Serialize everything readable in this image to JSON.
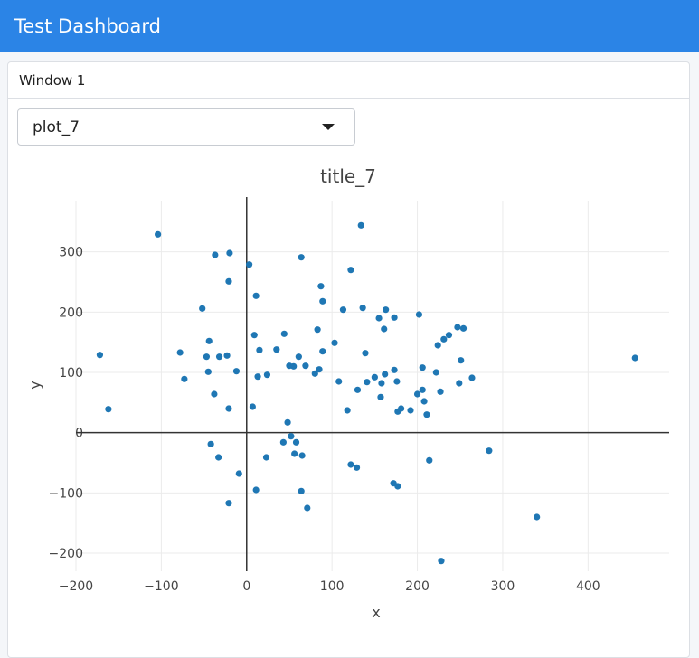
{
  "header": {
    "title": "Test Dashboard"
  },
  "window": {
    "title": "Window 1"
  },
  "select": {
    "value": "plot_7"
  },
  "colors": {
    "header_bg": "#2b84e6",
    "marker": "#1f77b4"
  },
  "chart_data": {
    "type": "scatter",
    "title": "title_7",
    "xlabel": "x",
    "ylabel": "y",
    "xlim": [
      -200,
      495
    ],
    "ylim": [
      -230,
      385
    ],
    "xticks": [
      -200,
      -100,
      0,
      100,
      200,
      300,
      400
    ],
    "yticks": [
      -200,
      -100,
      0,
      100,
      200,
      300
    ],
    "grid": true,
    "points": [
      [
        -172,
        129
      ],
      [
        -162,
        39
      ],
      [
        -104,
        329
      ],
      [
        -78,
        133
      ],
      [
        -73,
        89
      ],
      [
        -52,
        206
      ],
      [
        -47,
        126
      ],
      [
        -45,
        101
      ],
      [
        -44,
        152
      ],
      [
        -42,
        -19
      ],
      [
        -38,
        64
      ],
      [
        -37,
        295
      ],
      [
        -33,
        -41
      ],
      [
        -32,
        126
      ],
      [
        -23,
        128
      ],
      [
        -21,
        -117
      ],
      [
        -21,
        251
      ],
      [
        -21,
        40
      ],
      [
        -20,
        298
      ],
      [
        -12,
        102
      ],
      [
        -9,
        -68
      ],
      [
        3,
        279
      ],
      [
        7,
        43
      ],
      [
        9,
        162
      ],
      [
        11,
        227
      ],
      [
        11,
        -95
      ],
      [
        13,
        93
      ],
      [
        15,
        137
      ],
      [
        23,
        -41
      ],
      [
        24,
        96
      ],
      [
        35,
        138
      ],
      [
        43,
        -16
      ],
      [
        44,
        164
      ],
      [
        48,
        17
      ],
      [
        50,
        111
      ],
      [
        52,
        -6
      ],
      [
        55,
        110
      ],
      [
        56,
        -35
      ],
      [
        58,
        -16
      ],
      [
        61,
        126
      ],
      [
        64,
        291
      ],
      [
        64,
        -97
      ],
      [
        65,
        -38
      ],
      [
        69,
        111
      ],
      [
        71,
        -125
      ],
      [
        80,
        98
      ],
      [
        83,
        171
      ],
      [
        85,
        105
      ],
      [
        87,
        243
      ],
      [
        89,
        218
      ],
      [
        89,
        135
      ],
      [
        103,
        149
      ],
      [
        108,
        85
      ],
      [
        113,
        204
      ],
      [
        118,
        37
      ],
      [
        122,
        270
      ],
      [
        122,
        -53
      ],
      [
        129,
        -58
      ],
      [
        130,
        71
      ],
      [
        134,
        344
      ],
      [
        136,
        207
      ],
      [
        139,
        132
      ],
      [
        141,
        84
      ],
      [
        150,
        92
      ],
      [
        155,
        190
      ],
      [
        157,
        59
      ],
      [
        158,
        82
      ],
      [
        161,
        172
      ],
      [
        162,
        97
      ],
      [
        163,
        204
      ],
      [
        172,
        -84
      ],
      [
        173,
        191
      ],
      [
        173,
        104
      ],
      [
        176,
        85
      ],
      [
        177,
        -89
      ],
      [
        177,
        35
      ],
      [
        181,
        40
      ],
      [
        192,
        37
      ],
      [
        200,
        64
      ],
      [
        202,
        196
      ],
      [
        206,
        71
      ],
      [
        206,
        108
      ],
      [
        208,
        52
      ],
      [
        211,
        30
      ],
      [
        214,
        -46
      ],
      [
        222,
        100
      ],
      [
        224,
        145
      ],
      [
        227,
        68
      ],
      [
        228,
        -213
      ],
      [
        231,
        155
      ],
      [
        237,
        162
      ],
      [
        247,
        175
      ],
      [
        249,
        82
      ],
      [
        251,
        120
      ],
      [
        254,
        173
      ],
      [
        264,
        91
      ],
      [
        284,
        -30
      ],
      [
        340,
        -140
      ],
      [
        455,
        124
      ]
    ]
  }
}
